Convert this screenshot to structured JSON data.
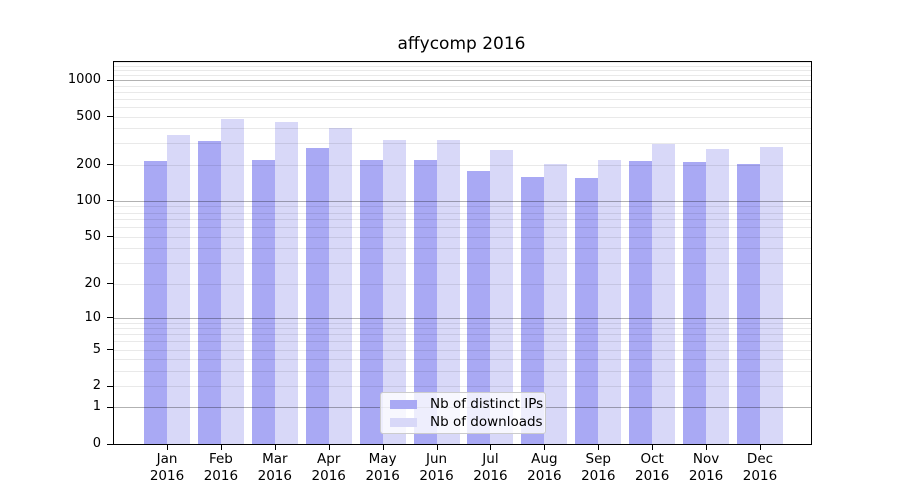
{
  "title": "affycomp 2016",
  "chart_data": {
    "type": "bar",
    "title": "affycomp 2016",
    "categories": [
      "Jan 2016",
      "Feb 2016",
      "Mar 2016",
      "Apr 2016",
      "May 2016",
      "Jun 2016",
      "Jul 2016",
      "Aug 2016",
      "Sep 2016",
      "Oct 2016",
      "Nov 2016",
      "Dec 2016"
    ],
    "series": [
      {
        "name": "Nb of distinct IPs",
        "color": "#a9a9f4",
        "values": [
          215,
          315,
          220,
          275,
          220,
          218,
          178,
          158,
          156,
          215,
          211,
          202
        ]
      },
      {
        "name": "Nb of downloads",
        "color": "#d8d8f8",
        "values": [
          350,
          480,
          450,
          400,
          320,
          322,
          265,
          202,
          218,
          295,
          270,
          281
        ]
      }
    ],
    "xlabel": "",
    "ylabel": "",
    "yscale": "log1p",
    "ylim": [
      0,
      1409
    ],
    "yticks": [
      0,
      1,
      2,
      5,
      10,
      20,
      50,
      100,
      200,
      500,
      1000
    ],
    "grid": "horizontal log grid, minor + major (powers of 10)",
    "legend_position": "lower center"
  },
  "colors": {
    "axis": "#000000",
    "grid_major": "#b0b0b0",
    "grid_minor": "#e9e9e9",
    "background": "#ffffff",
    "bar_distinct_ips": "#a9a9f4",
    "bar_downloads": "#d8d8f8"
  }
}
